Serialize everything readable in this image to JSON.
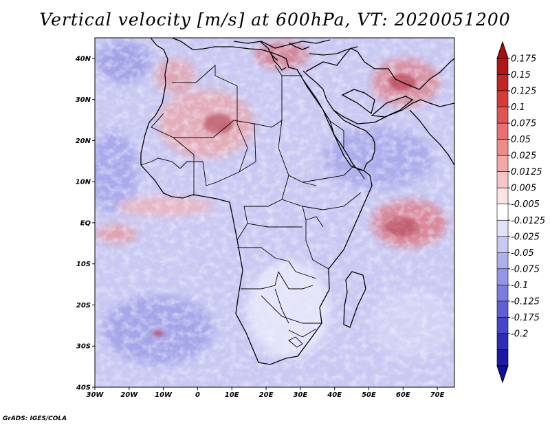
{
  "title": "Vertical velocity [m/s] at 600hPa, VT: 2020051200",
  "footer": "GrADS: IGES/COLA",
  "map": {
    "lat_labels": [
      "40N",
      "30N",
      "20N",
      "10N",
      "EQ",
      "10S",
      "20S",
      "30S",
      "40S"
    ],
    "lon_labels": [
      "30W",
      "20W",
      "10W",
      "0",
      "10E",
      "20E",
      "30E",
      "40E",
      "50E",
      "60E",
      "70E"
    ],
    "lat_range": [
      -40,
      45
    ],
    "lon_range": [
      -30,
      75
    ]
  },
  "colorbar": {
    "labels": [
      "0.175",
      "0.15",
      "0.125",
      "0.1",
      "0.075",
      "0.05",
      "0.025",
      "0.0125",
      "0.005",
      "-0.005",
      "-0.0125",
      "-0.025",
      "-0.05",
      "-0.075",
      "-0.1",
      "-0.125",
      "-0.175",
      "-0.2"
    ],
    "colors": [
      "#b01616",
      "#c42424",
      "#d83a3a",
      "#e25454",
      "#e87070",
      "#ee8c8c",
      "#f3a8a8",
      "#f8c6c6",
      "#fce4e4",
      "#ffffff",
      "#e2e2fa",
      "#c8c8f4",
      "#afafee",
      "#9696e8",
      "#7c7ce0",
      "#6060d6",
      "#4646cc",
      "#2c2cb8",
      "#1a1aa4"
    ],
    "top_color": "#a81010",
    "bottom_color": "#10109a"
  }
}
